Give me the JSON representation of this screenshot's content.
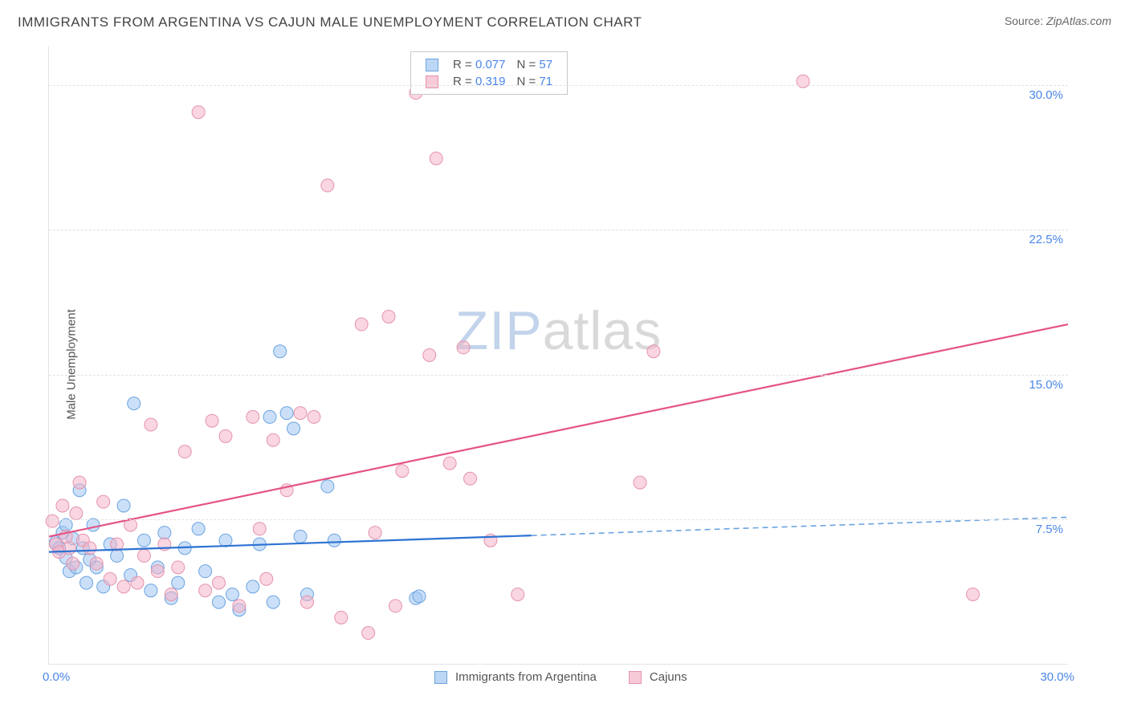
{
  "title": "IMMIGRANTS FROM ARGENTINA VS CAJUN MALE UNEMPLOYMENT CORRELATION CHART",
  "source_label": "Source: ",
  "source_value": "ZipAtlas.com",
  "ylabel": "Male Unemployment",
  "watermark_zip": "ZIP",
  "watermark_atlas": "atlas",
  "chart": {
    "type": "scatter",
    "xlim": [
      0,
      30
    ],
    "ylim": [
      0,
      32
    ],
    "x_min_label": "0.0%",
    "x_max_label": "30.0%",
    "y_ticks": [
      {
        "v": 7.5,
        "label": "7.5%"
      },
      {
        "v": 15.0,
        "label": "15.0%"
      },
      {
        "v": 22.5,
        "label": "22.5%"
      },
      {
        "v": 30.0,
        "label": "30.0%"
      }
    ],
    "background_color": "#ffffff",
    "grid_color": "#e2e2e2",
    "marker_radius": 8,
    "series": [
      {
        "id": "argentina",
        "label": "Immigrants from Argentina",
        "color_fill": "rgba(160,198,242,0.55)",
        "color_stroke": "#6aa3e0",
        "R": "0.077",
        "N": "57",
        "trend": {
          "x1": 0,
          "y1": 5.8,
          "x2": 30,
          "y2": 7.6,
          "solid_until_x": 14.2,
          "color_solid": "#2d72d2",
          "color_dash": "#6aa3e0"
        },
        "points": [
          [
            0.2,
            6.3
          ],
          [
            0.3,
            6.0
          ],
          [
            0.4,
            6.8
          ],
          [
            0.5,
            5.5
          ],
          [
            0.5,
            7.2
          ],
          [
            0.6,
            4.8
          ],
          [
            0.7,
            6.5
          ],
          [
            0.8,
            5.0
          ],
          [
            0.9,
            9.0
          ],
          [
            1.0,
            6.0
          ],
          [
            1.1,
            4.2
          ],
          [
            1.2,
            5.4
          ],
          [
            1.3,
            7.2
          ],
          [
            1.4,
            5.0
          ],
          [
            1.6,
            4.0
          ],
          [
            1.8,
            6.2
          ],
          [
            2.0,
            5.6
          ],
          [
            2.2,
            8.2
          ],
          [
            2.4,
            4.6
          ],
          [
            2.5,
            13.5
          ],
          [
            2.8,
            6.4
          ],
          [
            3.0,
            3.8
          ],
          [
            3.2,
            5.0
          ],
          [
            3.4,
            6.8
          ],
          [
            3.6,
            3.4
          ],
          [
            3.8,
            4.2
          ],
          [
            4.0,
            6.0
          ],
          [
            4.4,
            7.0
          ],
          [
            4.6,
            4.8
          ],
          [
            5.0,
            3.2
          ],
          [
            5.2,
            6.4
          ],
          [
            5.4,
            3.6
          ],
          [
            5.6,
            2.8
          ],
          [
            6.0,
            4.0
          ],
          [
            6.2,
            6.2
          ],
          [
            6.5,
            12.8
          ],
          [
            6.6,
            3.2
          ],
          [
            6.8,
            16.2
          ],
          [
            7.0,
            13.0
          ],
          [
            7.2,
            12.2
          ],
          [
            7.4,
            6.6
          ],
          [
            7.6,
            3.6
          ],
          [
            8.2,
            9.2
          ],
          [
            8.4,
            6.4
          ],
          [
            10.8,
            3.4
          ],
          [
            10.9,
            3.5
          ]
        ]
      },
      {
        "id": "cajuns",
        "label": "Cajuns",
        "color_fill": "rgba(244,180,200,0.55)",
        "color_stroke": "#e593ad",
        "R": "0.319",
        "N": "71",
        "trend": {
          "x1": 0,
          "y1": 6.6,
          "x2": 30,
          "y2": 17.6,
          "color": "#e55384"
        },
        "points": [
          [
            0.1,
            7.4
          ],
          [
            0.2,
            6.2
          ],
          [
            0.3,
            5.8
          ],
          [
            0.4,
            8.2
          ],
          [
            0.5,
            6.6
          ],
          [
            0.6,
            6.0
          ],
          [
            0.7,
            5.2
          ],
          [
            0.8,
            7.8
          ],
          [
            0.9,
            9.4
          ],
          [
            1.0,
            6.4
          ],
          [
            1.2,
            6.0
          ],
          [
            1.4,
            5.2
          ],
          [
            1.6,
            8.4
          ],
          [
            1.8,
            4.4
          ],
          [
            2.0,
            6.2
          ],
          [
            2.2,
            4.0
          ],
          [
            2.4,
            7.2
          ],
          [
            2.6,
            4.2
          ],
          [
            2.8,
            5.6
          ],
          [
            3.0,
            12.4
          ],
          [
            3.2,
            4.8
          ],
          [
            3.4,
            6.2
          ],
          [
            3.6,
            3.6
          ],
          [
            3.8,
            5.0
          ],
          [
            4.0,
            11.0
          ],
          [
            4.4,
            28.6
          ],
          [
            4.6,
            3.8
          ],
          [
            4.8,
            12.6
          ],
          [
            5.0,
            4.2
          ],
          [
            5.2,
            11.8
          ],
          [
            5.6,
            3.0
          ],
          [
            6.0,
            12.8
          ],
          [
            6.2,
            7.0
          ],
          [
            6.4,
            4.4
          ],
          [
            6.6,
            11.6
          ],
          [
            7.0,
            9.0
          ],
          [
            7.4,
            13.0
          ],
          [
            7.6,
            3.2
          ],
          [
            7.8,
            12.8
          ],
          [
            8.2,
            24.8
          ],
          [
            8.6,
            2.4
          ],
          [
            9.2,
            17.6
          ],
          [
            9.4,
            1.6
          ],
          [
            9.6,
            6.8
          ],
          [
            10.0,
            18.0
          ],
          [
            10.2,
            3.0
          ],
          [
            10.4,
            10.0
          ],
          [
            10.8,
            29.6
          ],
          [
            11.2,
            16.0
          ],
          [
            11.4,
            26.2
          ],
          [
            11.8,
            10.4
          ],
          [
            12.2,
            16.4
          ],
          [
            12.4,
            9.6
          ],
          [
            13.0,
            6.4
          ],
          [
            13.8,
            3.6
          ],
          [
            17.4,
            9.4
          ],
          [
            17.8,
            16.2
          ],
          [
            22.2,
            30.2
          ],
          [
            27.2,
            3.6
          ]
        ]
      }
    ]
  },
  "legend_top": {
    "r_label": "R =",
    "n_label": "N ="
  }
}
